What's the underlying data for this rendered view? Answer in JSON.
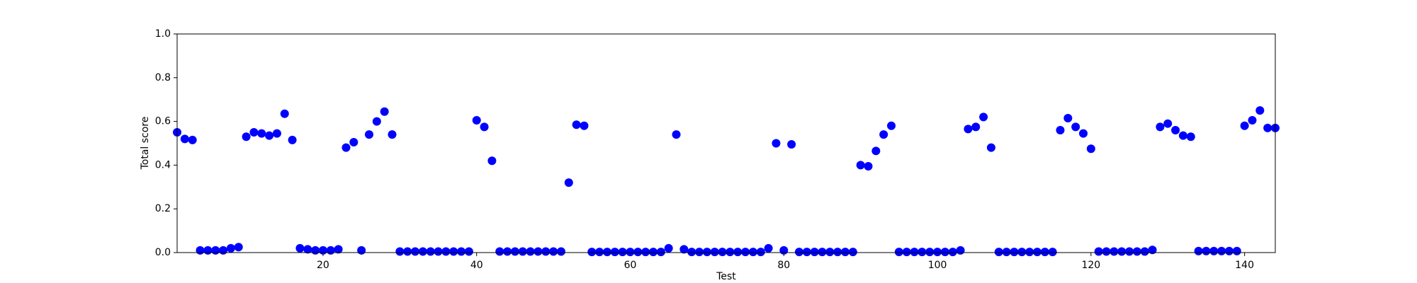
{
  "chart_data": {
    "type": "scatter",
    "x_label": "Test",
    "y_label": "Total score",
    "x": [
      1,
      2,
      3,
      4,
      5,
      6,
      7,
      8,
      9,
      10,
      11,
      12,
      13,
      14,
      15,
      16,
      17,
      18,
      19,
      20,
      21,
      22,
      23,
      24,
      25,
      26,
      27,
      28,
      29,
      30,
      31,
      32,
      33,
      34,
      35,
      36,
      37,
      38,
      39,
      40,
      41,
      42,
      43,
      44,
      45,
      46,
      47,
      48,
      49,
      50,
      51,
      52,
      53,
      54,
      55,
      56,
      57,
      58,
      59,
      60,
      61,
      62,
      63,
      64,
      65,
      66,
      67,
      68,
      69,
      70,
      71,
      72,
      73,
      74,
      75,
      76,
      77,
      78,
      79,
      80,
      81,
      82,
      83,
      84,
      85,
      86,
      87,
      88,
      89,
      90,
      91,
      92,
      93,
      94,
      95,
      96,
      97,
      98,
      99,
      100,
      101,
      102,
      103,
      104,
      105,
      106,
      107,
      108,
      109,
      110,
      111,
      112,
      113,
      114,
      115,
      116,
      117,
      118,
      119,
      120,
      121,
      122,
      123,
      124,
      125,
      126,
      127,
      128,
      129,
      130,
      131,
      132,
      133,
      134,
      135,
      136,
      137,
      138,
      139,
      140,
      141,
      142,
      143,
      144
    ],
    "series": [
      {
        "color": "#0000ff",
        "values": [
          0.55,
          0.52,
          0.515,
          0.01,
          0.01,
          0.01,
          0.01,
          0.02,
          0.025,
          0.53,
          0.55,
          0.545,
          0.535,
          0.545,
          0.635,
          0.515,
          0.02,
          0.015,
          0.01,
          0.01,
          0.01,
          0.015,
          0.48,
          0.505,
          0.01,
          0.54,
          0.6,
          0.645,
          0.54,
          0.005,
          0.005,
          0.005,
          0.005,
          0.005,
          0.005,
          0.005,
          0.005,
          0.005,
          0.005,
          0.605,
          0.575,
          0.42,
          0.005,
          0.005,
          0.005,
          0.005,
          0.005,
          0.005,
          0.005,
          0.005,
          0.005,
          0.32,
          0.585,
          0.58,
          0.003,
          0.003,
          0.003,
          0.003,
          0.003,
          0.003,
          0.003,
          0.003,
          0.003,
          0.003,
          0.02,
          0.54,
          0.015,
          0.003,
          0.003,
          0.003,
          0.003,
          0.003,
          0.003,
          0.003,
          0.003,
          0.003,
          0.003,
          0.02,
          0.5,
          0.01,
          0.495,
          0.003,
          0.003,
          0.003,
          0.003,
          0.003,
          0.003,
          0.003,
          0.003,
          0.4,
          0.395,
          0.465,
          0.54,
          0.58,
          0.003,
          0.003,
          0.003,
          0.003,
          0.003,
          0.003,
          0.003,
          0.003,
          0.01,
          0.565,
          0.575,
          0.62,
          0.48,
          0.003,
          0.003,
          0.003,
          0.003,
          0.003,
          0.003,
          0.003,
          0.003,
          0.56,
          0.615,
          0.575,
          0.545,
          0.475,
          0.005,
          0.005,
          0.005,
          0.005,
          0.005,
          0.005,
          0.005,
          0.012,
          0.575,
          0.59,
          0.56,
          0.535,
          0.53,
          0.007,
          0.007,
          0.007,
          0.007,
          0.007,
          0.007,
          0.58,
          0.605,
          0.65,
          0.57,
          0.57
        ]
      }
    ],
    "xlim": [
      1,
      144
    ],
    "xticks": [
      20,
      40,
      60,
      80,
      100,
      120,
      140
    ],
    "ylim": [
      0,
      1
    ],
    "yticks": [
      {
        "value": 0,
        "label": "0.0"
      },
      0.2,
      0.4,
      0.6,
      0.8,
      {
        "value": 1,
        "label": "1.0"
      }
    ],
    "grid": false
  }
}
